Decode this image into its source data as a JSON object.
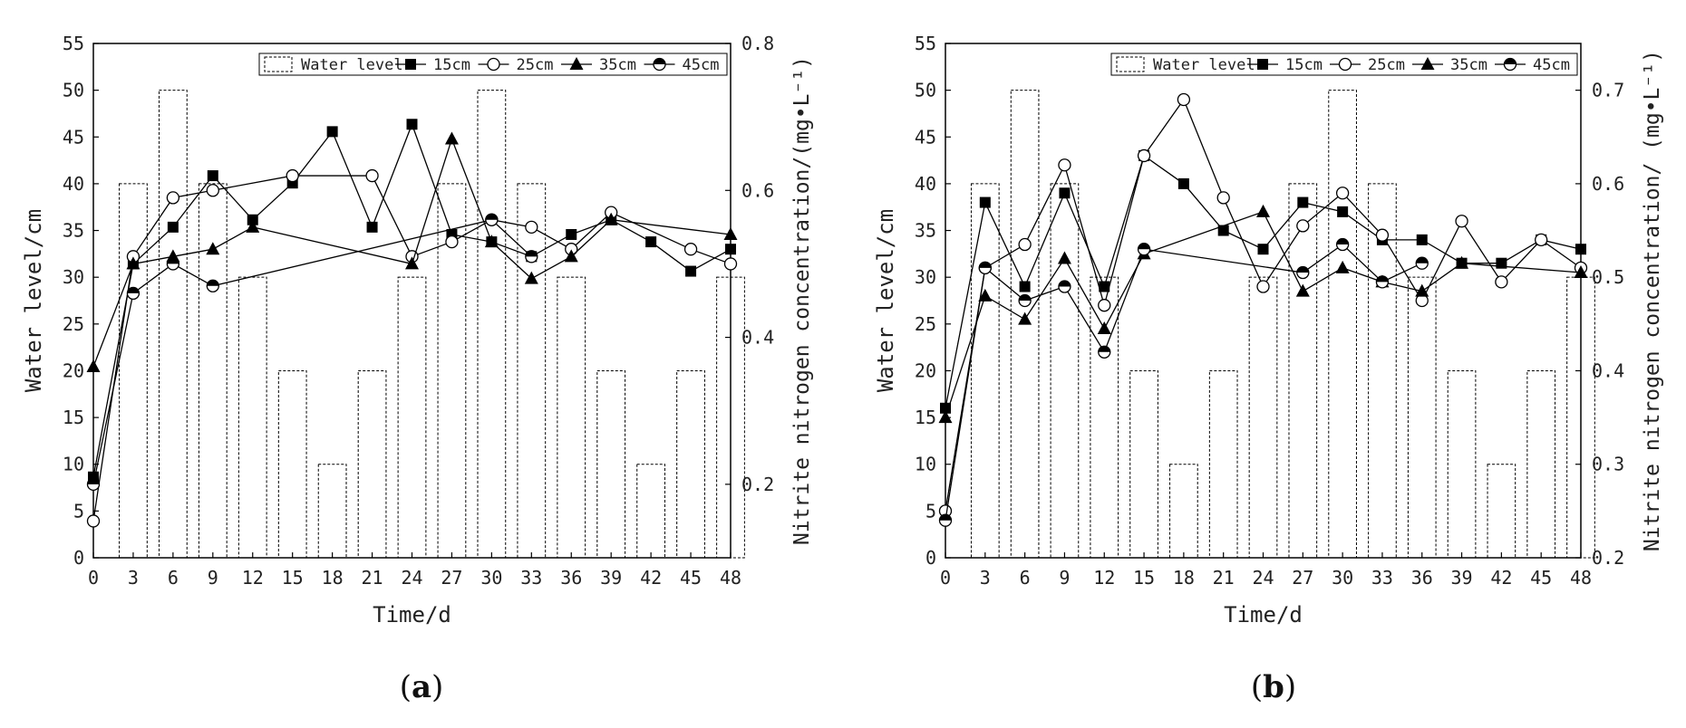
{
  "figure": {
    "panels": [
      "a",
      "b"
    ],
    "caption_open": "(",
    "caption_close": ")"
  },
  "chart_data": [
    {
      "panel": "a",
      "type": "bar+line",
      "xlabel": "Time/d",
      "ylabel": "Water level/cm",
      "y2label": "Nitrite nitrogen concentration/(mg•L⁻¹)",
      "xlim": [
        0,
        48
      ],
      "ylim": [
        0,
        55
      ],
      "y2lim": [
        0.1,
        0.8
      ],
      "xticks": [
        0,
        3,
        6,
        9,
        12,
        15,
        18,
        21,
        24,
        27,
        30,
        33,
        36,
        39,
        42,
        45,
        48
      ],
      "yticks": [
        0,
        5,
        10,
        15,
        20,
        25,
        30,
        35,
        40,
        45,
        50,
        55
      ],
      "y2ticks": [
        0.2,
        0.4,
        0.6,
        0.8
      ],
      "legend": [
        "Water level",
        "15cm",
        "25cm",
        "35cm",
        "45cm"
      ],
      "water_level": {
        "name": "Water level",
        "x": [
          3,
          6,
          9,
          12,
          15,
          18,
          21,
          24,
          27,
          30,
          33,
          36,
          39,
          42,
          45,
          48
        ],
        "values": [
          40,
          50,
          40,
          30,
          20,
          10,
          20,
          30,
          40,
          50,
          40,
          30,
          20,
          10,
          20,
          30
        ]
      },
      "series": [
        {
          "name": "15cm",
          "marker": "square",
          "x": [
            0,
            3,
            6,
            9,
            12,
            15,
            18,
            21,
            24,
            27,
            30,
            33,
            36,
            39,
            42,
            45,
            48
          ],
          "y": [
            0.21,
            0.5,
            0.55,
            0.62,
            0.56,
            0.61,
            0.68,
            0.55,
            0.69,
            0.54,
            0.53,
            0.51,
            0.54,
            0.56,
            0.53,
            0.49,
            0.52
          ]
        },
        {
          "name": "25cm",
          "marker": "circle-open",
          "x": [
            0,
            3,
            6,
            9,
            15,
            21,
            24,
            27,
            30,
            33,
            36,
            39,
            45,
            48
          ],
          "y": [
            0.15,
            0.51,
            0.59,
            0.6,
            0.62,
            0.62,
            0.51,
            0.53,
            0.56,
            0.55,
            0.52,
            0.57,
            0.52,
            0.5
          ]
        },
        {
          "name": "35cm",
          "marker": "triangle",
          "x": [
            0,
            3,
            6,
            9,
            12,
            24,
            27,
            30,
            33,
            36,
            39,
            48
          ],
          "y": [
            0.36,
            0.5,
            0.51,
            0.52,
            0.55,
            0.5,
            0.67,
            0.53,
            0.48,
            0.51,
            0.56,
            0.54
          ]
        },
        {
          "name": "45cm",
          "marker": "circle-half",
          "x": [
            0,
            3,
            6,
            9,
            30,
            33
          ],
          "y": [
            0.2,
            0.46,
            0.5,
            0.47,
            0.56,
            0.51
          ]
        }
      ]
    },
    {
      "panel": "b",
      "type": "bar+line",
      "xlabel": "Time/d",
      "ylabel": "Water level/cm",
      "y2label": "Nitrite nitrogen concentration/ (mg•L⁻¹)",
      "xlim": [
        0,
        48
      ],
      "ylim": [
        0,
        55
      ],
      "y2lim": [
        0.2,
        0.75
      ],
      "xticks": [
        0,
        3,
        6,
        9,
        12,
        15,
        18,
        21,
        24,
        27,
        30,
        33,
        36,
        39,
        42,
        45,
        48
      ],
      "yticks": [
        0,
        5,
        10,
        15,
        20,
        25,
        30,
        35,
        40,
        45,
        50,
        55
      ],
      "y2ticks": [
        0.2,
        0.3,
        0.4,
        0.5,
        0.6,
        0.7
      ],
      "legend": [
        "Water level",
        "15cm",
        "25cm",
        "35cm",
        "45cm"
      ],
      "water_level": {
        "name": "Water level",
        "x": [
          3,
          6,
          9,
          12,
          15,
          18,
          21,
          24,
          27,
          30,
          33,
          36,
          39,
          42,
          45,
          48
        ],
        "values": [
          40,
          50,
          40,
          30,
          20,
          10,
          20,
          30,
          40,
          50,
          40,
          30,
          20,
          10,
          20,
          30
        ]
      },
      "series": [
        {
          "name": "15cm",
          "marker": "square",
          "x": [
            0,
            3,
            6,
            9,
            12,
            15,
            18,
            21,
            24,
            27,
            30,
            33,
            36,
            39,
            42,
            45,
            48
          ],
          "y": [
            0.36,
            0.58,
            0.49,
            0.59,
            0.49,
            0.63,
            0.6,
            0.55,
            0.53,
            0.58,
            0.57,
            0.54,
            0.54,
            0.515,
            0.515,
            0.54,
            0.53
          ]
        },
        {
          "name": "25cm",
          "marker": "circle-open",
          "x": [
            0,
            3,
            6,
            9,
            12,
            15,
            18,
            21,
            24,
            27,
            30,
            33,
            36,
            39,
            42,
            45,
            48
          ],
          "y": [
            0.25,
            0.51,
            0.535,
            0.62,
            0.47,
            0.63,
            0.69,
            0.585,
            0.49,
            0.555,
            0.59,
            0.545,
            0.475,
            0.56,
            0.495,
            0.54,
            0.51
          ]
        },
        {
          "name": "35cm",
          "marker": "triangle",
          "x": [
            0,
            3,
            6,
            9,
            12,
            15,
            24,
            27,
            30,
            33,
            36,
            39,
            48
          ],
          "y": [
            0.35,
            0.48,
            0.455,
            0.52,
            0.445,
            0.525,
            0.57,
            0.485,
            0.51,
            0.495,
            0.485,
            0.515,
            0.505
          ]
        },
        {
          "name": "45cm",
          "marker": "circle-half",
          "x": [
            0,
            3,
            6,
            9,
            12,
            15,
            27,
            30,
            33,
            36
          ],
          "y": [
            0.24,
            0.51,
            0.475,
            0.49,
            0.42,
            0.53,
            0.505,
            0.535,
            0.495,
            0.515
          ]
        }
      ]
    }
  ]
}
